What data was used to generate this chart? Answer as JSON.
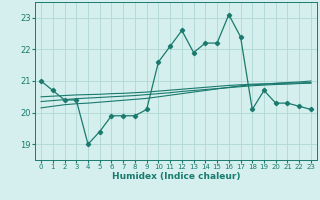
{
  "xlabel": "Humidex (Indice chaleur)",
  "bg_color": "#d4efed",
  "grid_color": "#b0d8d4",
  "line_color": "#1a7a6e",
  "xlim": [
    -0.5,
    23.5
  ],
  "ylim": [
    18.5,
    23.5
  ],
  "yticks": [
    19,
    20,
    21,
    22,
    23
  ],
  "xticks": [
    0,
    1,
    2,
    3,
    4,
    5,
    6,
    7,
    8,
    9,
    10,
    11,
    12,
    13,
    14,
    15,
    16,
    17,
    18,
    19,
    20,
    21,
    22,
    23
  ],
  "series1": [
    21.0,
    20.7,
    20.4,
    20.4,
    19.0,
    19.4,
    19.9,
    19.9,
    19.9,
    20.1,
    21.6,
    22.1,
    22.6,
    21.9,
    22.2,
    22.2,
    23.1,
    22.4,
    20.1,
    20.7,
    20.3,
    20.3,
    20.2,
    20.1
  ],
  "trend1": [
    20.15,
    20.2,
    20.25,
    20.28,
    20.3,
    20.33,
    20.36,
    20.39,
    20.42,
    20.45,
    20.5,
    20.55,
    20.6,
    20.65,
    20.7,
    20.75,
    20.8,
    20.85,
    20.88,
    20.9,
    20.93,
    20.95,
    20.97,
    21.0
  ],
  "trend2": [
    20.35,
    20.38,
    20.41,
    20.44,
    20.46,
    20.48,
    20.5,
    20.52,
    20.54,
    20.57,
    20.6,
    20.63,
    20.67,
    20.7,
    20.73,
    20.76,
    20.79,
    20.82,
    20.85,
    20.87,
    20.89,
    20.9,
    20.92,
    20.93
  ],
  "trend3": [
    20.5,
    20.52,
    20.54,
    20.56,
    20.57,
    20.58,
    20.6,
    20.61,
    20.63,
    20.65,
    20.68,
    20.71,
    20.74,
    20.77,
    20.8,
    20.83,
    20.86,
    20.88,
    20.9,
    20.91,
    20.92,
    20.93,
    20.94,
    20.95
  ]
}
